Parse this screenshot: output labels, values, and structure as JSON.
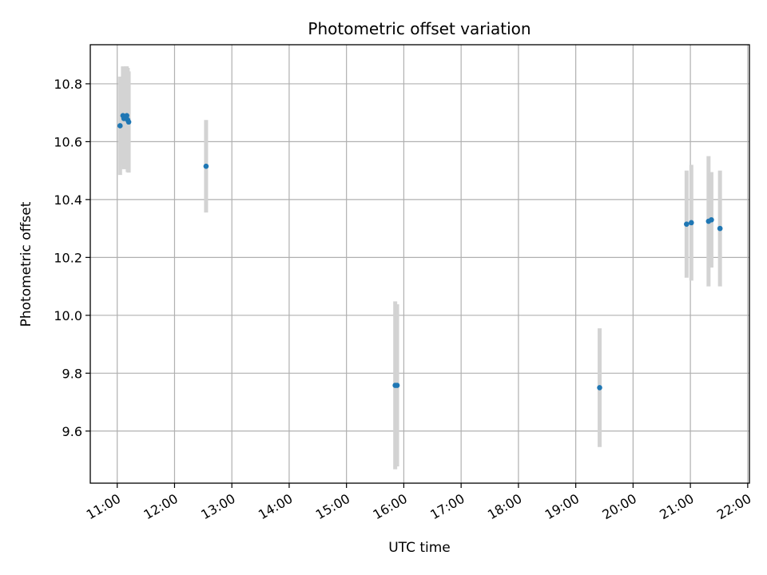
{
  "chart_data": {
    "type": "scatter",
    "title": "Photometric offset variation",
    "xlabel": "UTC time",
    "ylabel": "Photometric offset",
    "xlim_hours": [
      10.53,
      22.03
    ],
    "ylim": [
      9.42,
      10.935
    ],
    "x_ticks": [
      "11:00",
      "12:00",
      "13:00",
      "14:00",
      "15:00",
      "16:00",
      "17:00",
      "18:00",
      "19:00",
      "20:00",
      "21:00",
      "22:00"
    ],
    "y_ticks": [
      "9.6",
      "9.8",
      "10.0",
      "10.2",
      "10.4",
      "10.6",
      "10.8"
    ],
    "grid": true,
    "colors": {
      "point": "#1f77b4",
      "errorbar": "#d3d3d3"
    },
    "points": [
      {
        "t": "11:03",
        "y": 10.655,
        "err": 0.17
      },
      {
        "t": "11:06",
        "y": 10.69,
        "err": 0.17
      },
      {
        "t": "11:07",
        "y": 10.68,
        "err": 0.175
      },
      {
        "t": "11:09",
        "y": 10.685,
        "err": 0.175
      },
      {
        "t": "11:10",
        "y": 10.69,
        "err": 0.17
      },
      {
        "t": "11:11",
        "y": 10.675,
        "err": 0.18
      },
      {
        "t": "11:12",
        "y": 10.668,
        "err": 0.175
      },
      {
        "t": "12:33",
        "y": 10.515,
        "err": 0.16
      },
      {
        "t": "15:51",
        "y": 9.758,
        "err": 0.29
      },
      {
        "t": "15:53",
        "y": 9.758,
        "err": 0.28
      },
      {
        "t": "19:25",
        "y": 9.75,
        "err": 0.205
      },
      {
        "t": "20:56",
        "y": 10.315,
        "err": 0.185
      },
      {
        "t": "21:01",
        "y": 10.32,
        "err": 0.2
      },
      {
        "t": "21:19",
        "y": 10.325,
        "err": 0.225
      },
      {
        "t": "21:22",
        "y": 10.33,
        "err": 0.165
      },
      {
        "t": "21:31",
        "y": 10.3,
        "err": 0.2
      }
    ]
  }
}
